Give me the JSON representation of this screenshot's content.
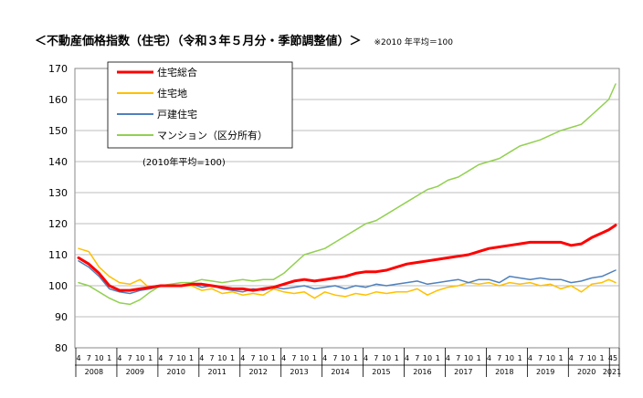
{
  "heading": {
    "title": "＜不動産価格指数（住宅）（令和３年５月分・季節調整値）＞",
    "note": "※2010 年平均＝100"
  },
  "chart_data": {
    "type": "line",
    "title": "＜不動産価格指数（住宅）（令和３年５月分・季節調整値）＞",
    "note": "(2010年平均=100)",
    "ylim": [
      80,
      170
    ],
    "yticks": [
      80,
      90,
      100,
      110,
      120,
      130,
      140,
      150,
      160,
      170
    ],
    "grid": true,
    "legend": "top-left",
    "x_month_labels": [
      "4",
      "7",
      "10",
      "1"
    ],
    "x_last_label": "45",
    "years": [
      "2008",
      "2009",
      "2010",
      "2011",
      "2012",
      "2013",
      "2014",
      "2015",
      "2016",
      "2017",
      "2018",
      "2019",
      "2020",
      "2021"
    ],
    "start": "2008-04",
    "end": "2021-05",
    "series": [
      {
        "name": "住宅総合",
        "color": "#ff0000",
        "width": 3,
        "anchors": [
          [
            "2008-04",
            109
          ],
          [
            "2008-07",
            107
          ],
          [
            "2008-10",
            104
          ],
          [
            "2009-01",
            100
          ],
          [
            "2009-04",
            98.5
          ],
          [
            "2009-07",
            98.5
          ],
          [
            "2009-10",
            99
          ],
          [
            "2010-01",
            99.5
          ],
          [
            "2010-04",
            100
          ],
          [
            "2010-07",
            100
          ],
          [
            "2010-10",
            100
          ],
          [
            "2011-01",
            100.5
          ],
          [
            "2011-04",
            100.5
          ],
          [
            "2011-07",
            100
          ],
          [
            "2011-10",
            99.5
          ],
          [
            "2012-01",
            99
          ],
          [
            "2012-04",
            99
          ],
          [
            "2012-07",
            98.5
          ],
          [
            "2012-10",
            99
          ],
          [
            "2013-01",
            99.5
          ],
          [
            "2013-04",
            100.5
          ],
          [
            "2013-07",
            101.5
          ],
          [
            "2013-10",
            102
          ],
          [
            "2014-01",
            101.5
          ],
          [
            "2014-04",
            102
          ],
          [
            "2014-07",
            102.5
          ],
          [
            "2014-10",
            103
          ],
          [
            "2015-01",
            104
          ],
          [
            "2015-04",
            104.5
          ],
          [
            "2015-07",
            104.5
          ],
          [
            "2015-10",
            105
          ],
          [
            "2016-01",
            106
          ],
          [
            "2016-04",
            107
          ],
          [
            "2016-07",
            107.5
          ],
          [
            "2016-10",
            108
          ],
          [
            "2017-01",
            108.5
          ],
          [
            "2017-04",
            109
          ],
          [
            "2017-07",
            109.5
          ],
          [
            "2017-10",
            110
          ],
          [
            "2018-01",
            111
          ],
          [
            "2018-04",
            112
          ],
          [
            "2018-07",
            112.5
          ],
          [
            "2018-10",
            113
          ],
          [
            "2019-01",
            113.5
          ],
          [
            "2019-04",
            114
          ],
          [
            "2019-07",
            114
          ],
          [
            "2019-10",
            114
          ],
          [
            "2020-01",
            114
          ],
          [
            "2020-04",
            113
          ],
          [
            "2020-07",
            113.5
          ],
          [
            "2020-10",
            115.5
          ],
          [
            "2021-01",
            117
          ],
          [
            "2021-03",
            118
          ],
          [
            "2021-05",
            119.5
          ]
        ]
      },
      {
        "name": "住宅地",
        "color": "#ffc000",
        "width": 1.5,
        "anchors": [
          [
            "2008-04",
            112
          ],
          [
            "2008-07",
            111
          ],
          [
            "2008-10",
            106
          ],
          [
            "2009-01",
            103
          ],
          [
            "2009-04",
            101
          ],
          [
            "2009-07",
            100.5
          ],
          [
            "2009-10",
            102
          ],
          [
            "2010-01",
            99
          ],
          [
            "2010-04",
            100
          ],
          [
            "2010-07",
            100
          ],
          [
            "2010-10",
            100
          ],
          [
            "2011-01",
            100
          ],
          [
            "2011-04",
            98.5
          ],
          [
            "2011-07",
            99
          ],
          [
            "2011-10",
            97.5
          ],
          [
            "2012-01",
            98
          ],
          [
            "2012-04",
            97
          ],
          [
            "2012-07",
            97.5
          ],
          [
            "2012-10",
            97
          ],
          [
            "2013-01",
            99
          ],
          [
            "2013-04",
            98
          ],
          [
            "2013-07",
            97.5
          ],
          [
            "2013-10",
            98
          ],
          [
            "2014-01",
            96
          ],
          [
            "2014-04",
            98
          ],
          [
            "2014-07",
            97
          ],
          [
            "2014-10",
            96.5
          ],
          [
            "2015-01",
            97.5
          ],
          [
            "2015-04",
            97
          ],
          [
            "2015-07",
            98
          ],
          [
            "2015-10",
            97.5
          ],
          [
            "2016-01",
            98
          ],
          [
            "2016-04",
            98
          ],
          [
            "2016-07",
            99
          ],
          [
            "2016-10",
            97
          ],
          [
            "2017-01",
            98.5
          ],
          [
            "2017-04",
            99.5
          ],
          [
            "2017-07",
            100
          ],
          [
            "2017-10",
            101
          ],
          [
            "2018-01",
            100.5
          ],
          [
            "2018-04",
            101
          ],
          [
            "2018-07",
            100
          ],
          [
            "2018-10",
            101
          ],
          [
            "2019-01",
            100.5
          ],
          [
            "2019-04",
            101
          ],
          [
            "2019-07",
            100
          ],
          [
            "2019-10",
            100.5
          ],
          [
            "2020-01",
            99
          ],
          [
            "2020-04",
            100
          ],
          [
            "2020-07",
            98
          ],
          [
            "2020-10",
            100.5
          ],
          [
            "2021-01",
            101
          ],
          [
            "2021-03",
            102
          ],
          [
            "2021-05",
            101
          ]
        ]
      },
      {
        "name": "戸建住宅",
        "color": "#4f81bd",
        "width": 1.5,
        "anchors": [
          [
            "2008-04",
            108
          ],
          [
            "2008-07",
            106
          ],
          [
            "2008-10",
            103
          ],
          [
            "2009-01",
            99
          ],
          [
            "2009-04",
            98
          ],
          [
            "2009-07",
            97.5
          ],
          [
            "2009-10",
            98.5
          ],
          [
            "2010-01",
            99
          ],
          [
            "2010-04",
            100
          ],
          [
            "2010-07",
            100
          ],
          [
            "2010-10",
            100
          ],
          [
            "2011-01",
            100.5
          ],
          [
            "2011-04",
            99.5
          ],
          [
            "2011-07",
            100
          ],
          [
            "2011-10",
            99
          ],
          [
            "2012-01",
            98.5
          ],
          [
            "2012-04",
            98
          ],
          [
            "2012-07",
            99
          ],
          [
            "2012-10",
            98.5
          ],
          [
            "2013-01",
            99.5
          ],
          [
            "2013-04",
            99
          ],
          [
            "2013-07",
            99.5
          ],
          [
            "2013-10",
            100
          ],
          [
            "2014-01",
            99
          ],
          [
            "2014-04",
            99.5
          ],
          [
            "2014-07",
            100
          ],
          [
            "2014-10",
            99
          ],
          [
            "2015-01",
            100
          ],
          [
            "2015-04",
            99.5
          ],
          [
            "2015-07",
            100.5
          ],
          [
            "2015-10",
            100
          ],
          [
            "2016-01",
            100.5
          ],
          [
            "2016-04",
            101
          ],
          [
            "2016-07",
            101.5
          ],
          [
            "2016-10",
            100.5
          ],
          [
            "2017-01",
            101
          ],
          [
            "2017-04",
            101.5
          ],
          [
            "2017-07",
            102
          ],
          [
            "2017-10",
            101
          ],
          [
            "2018-01",
            102
          ],
          [
            "2018-04",
            102
          ],
          [
            "2018-07",
            101
          ],
          [
            "2018-10",
            103
          ],
          [
            "2019-01",
            102.5
          ],
          [
            "2019-04",
            102
          ],
          [
            "2019-07",
            102.5
          ],
          [
            "2019-10",
            102
          ],
          [
            "2020-01",
            102
          ],
          [
            "2020-04",
            101
          ],
          [
            "2020-07",
            101.5
          ],
          [
            "2020-10",
            102.5
          ],
          [
            "2021-01",
            103
          ],
          [
            "2021-03",
            104
          ],
          [
            "2021-05",
            105
          ]
        ]
      },
      {
        "name": "マンション（区分所有）",
        "color": "#92d050",
        "width": 1.5,
        "anchors": [
          [
            "2008-04",
            101
          ],
          [
            "2008-07",
            100
          ],
          [
            "2008-10",
            98
          ],
          [
            "2009-01",
            96
          ],
          [
            "2009-04",
            94.5
          ],
          [
            "2009-07",
            94
          ],
          [
            "2009-10",
            95.5
          ],
          [
            "2010-01",
            98
          ],
          [
            "2010-04",
            100
          ],
          [
            "2010-07",
            100.5
          ],
          [
            "2010-10",
            101
          ],
          [
            "2011-01",
            101
          ],
          [
            "2011-04",
            102
          ],
          [
            "2011-07",
            101.5
          ],
          [
            "2011-10",
            101
          ],
          [
            "2012-01",
            101.5
          ],
          [
            "2012-04",
            102
          ],
          [
            "2012-07",
            101.5
          ],
          [
            "2012-10",
            102
          ],
          [
            "2013-01",
            102
          ],
          [
            "2013-04",
            104
          ],
          [
            "2013-07",
            107
          ],
          [
            "2013-10",
            110
          ],
          [
            "2014-01",
            111
          ],
          [
            "2014-04",
            112
          ],
          [
            "2014-07",
            114
          ],
          [
            "2014-10",
            116
          ],
          [
            "2015-01",
            118
          ],
          [
            "2015-04",
            120
          ],
          [
            "2015-07",
            121
          ],
          [
            "2015-10",
            123
          ],
          [
            "2016-01",
            125
          ],
          [
            "2016-04",
            127
          ],
          [
            "2016-07",
            129
          ],
          [
            "2016-10",
            131
          ],
          [
            "2017-01",
            132
          ],
          [
            "2017-04",
            134
          ],
          [
            "2017-07",
            135
          ],
          [
            "2017-10",
            137
          ],
          [
            "2018-01",
            139
          ],
          [
            "2018-04",
            140
          ],
          [
            "2018-07",
            141
          ],
          [
            "2018-10",
            143
          ],
          [
            "2019-01",
            145
          ],
          [
            "2019-04",
            146
          ],
          [
            "2019-07",
            147
          ],
          [
            "2019-10",
            148.5
          ],
          [
            "2020-01",
            150
          ],
          [
            "2020-04",
            151
          ],
          [
            "2020-07",
            152
          ],
          [
            "2020-10",
            155
          ],
          [
            "2021-01",
            158
          ],
          [
            "2021-03",
            160
          ],
          [
            "2021-05",
            165
          ]
        ]
      }
    ]
  }
}
